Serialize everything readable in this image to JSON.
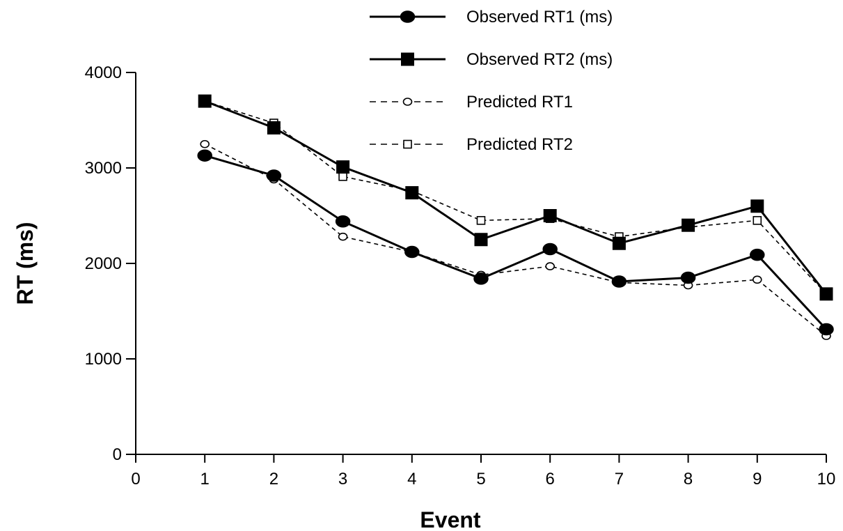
{
  "chart_data": {
    "type": "line",
    "title": "",
    "xlabel": "Event",
    "ylabel": "RT (ms)",
    "xlim": [
      0,
      10
    ],
    "ylim": [
      0,
      4000
    ],
    "x_ticks": [
      0,
      1,
      2,
      3,
      4,
      5,
      6,
      7,
      8,
      9,
      10
    ],
    "y_ticks": [
      0,
      1000,
      2000,
      3000,
      4000
    ],
    "grid": false,
    "legend_position": "top-right",
    "x": [
      1,
      2,
      3,
      4,
      5,
      6,
      7,
      8,
      9,
      10
    ],
    "series": [
      {
        "name": "Observed RT1 (ms)",
        "line": "solid",
        "marker": "filled-circle",
        "values": [
          3130,
          2920,
          2440,
          2120,
          1840,
          2150,
          1810,
          1850,
          2090,
          1310
        ]
      },
      {
        "name": "Observed RT2 (ms)",
        "line": "solid",
        "marker": "filled-square",
        "values": [
          3700,
          3420,
          3010,
          2740,
          2250,
          2500,
          2210,
          2400,
          2600,
          1680
        ]
      },
      {
        "name": "Predicted RT1",
        "line": "dashed",
        "marker": "open-circle",
        "values": [
          3250,
          2880,
          2280,
          2120,
          1880,
          1970,
          1800,
          1770,
          1830,
          1240
        ]
      },
      {
        "name": "Predicted RT2",
        "line": "dashed",
        "marker": "open-square",
        "values": [
          3700,
          3470,
          2910,
          2760,
          2450,
          2470,
          2280,
          2380,
          2450,
          1680
        ]
      }
    ],
    "colors": {
      "line": "#000000",
      "background": "#ffffff"
    }
  }
}
